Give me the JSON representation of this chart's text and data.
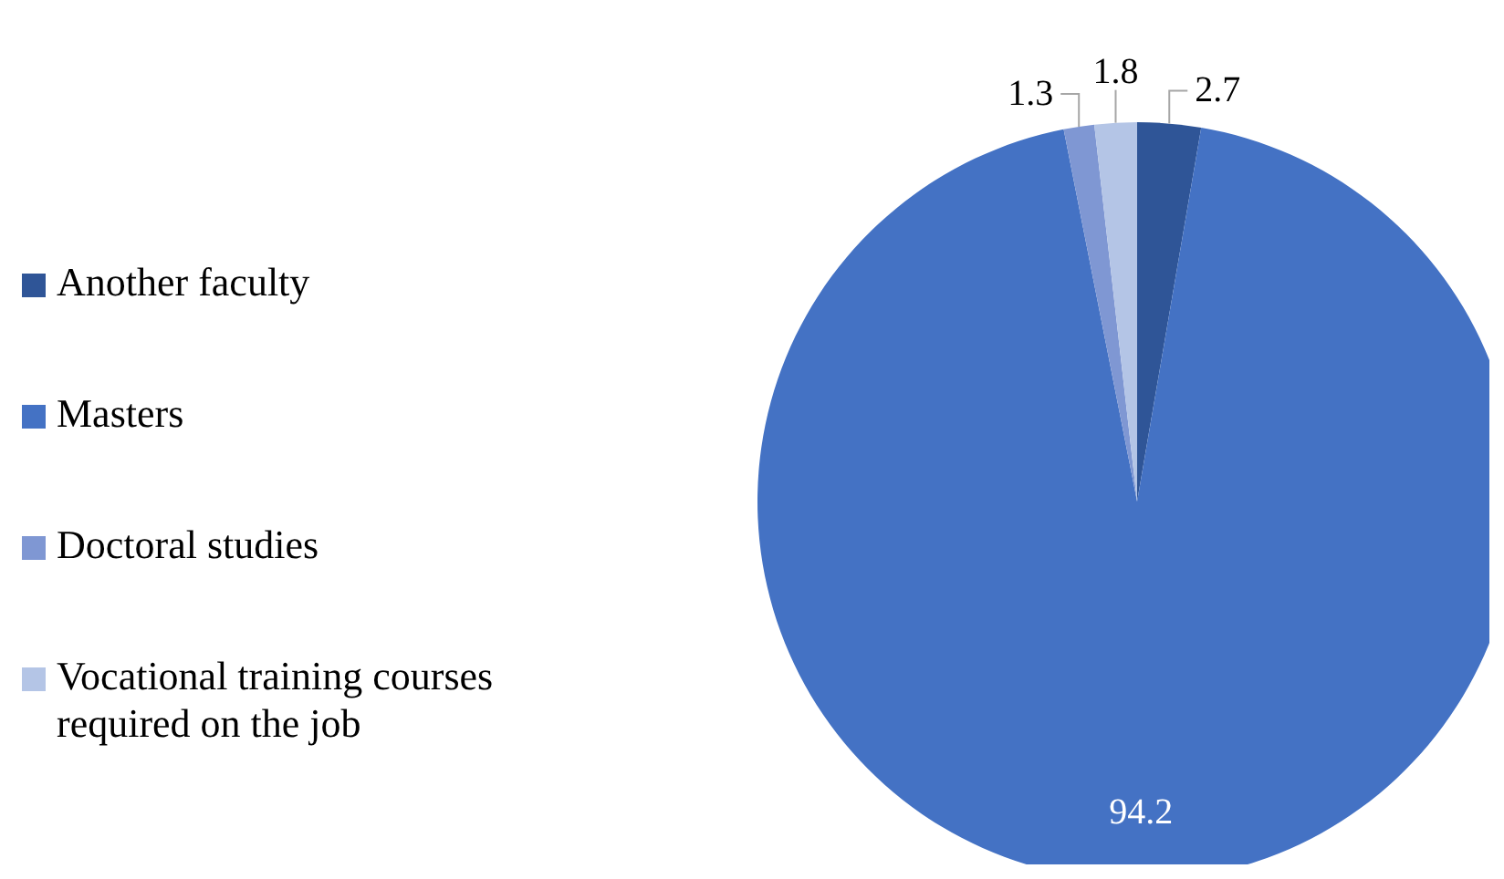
{
  "chart_data": {
    "type": "pie",
    "categories": [
      "Another faculty",
      "Masters",
      "Doctoral studies",
      "Vocational training courses required on the job"
    ],
    "values": [
      2.7,
      94.2,
      1.3,
      1.8
    ],
    "colors": [
      "#2f5597",
      "#4472c4",
      "#7f97d3",
      "#b4c5e6"
    ],
    "data_labels": true,
    "legend": "left"
  }
}
